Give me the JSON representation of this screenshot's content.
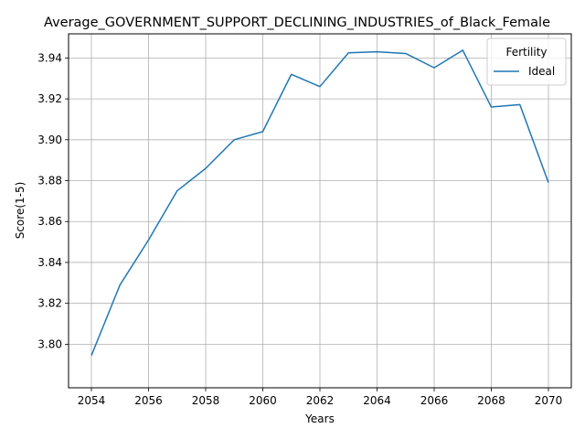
{
  "chart_data": {
    "type": "line",
    "title": "Average_GOVERNMENT_SUPPORT_DECLINING_INDUSTRIES_of_Black_Female",
    "xlabel": "Years",
    "ylabel": "Score(1-5)",
    "x": [
      2054,
      2055,
      2056,
      2057,
      2058,
      2059,
      2060,
      2061,
      2062,
      2063,
      2064,
      2065,
      2066,
      2067,
      2068,
      2069,
      2070
    ],
    "x_ticks": [
      "2054",
      "2056",
      "2058",
      "2060",
      "2062",
      "2064",
      "2066",
      "2068",
      "2070"
    ],
    "y_ticks": [
      "3.80",
      "3.82",
      "3.84",
      "3.86",
      "3.88",
      "3.90",
      "3.92",
      "3.94"
    ],
    "xlim": [
      2053.2,
      2070.8
    ],
    "ylim": [
      3.7787,
      3.9518
    ],
    "grid": true,
    "legend": {
      "title": "Fertility",
      "placement": "top-right"
    },
    "series": [
      {
        "name": "Ideal",
        "color": "#1f77b4",
        "values": [
          3.7945,
          3.829,
          3.851,
          3.875,
          3.886,
          3.9,
          3.904,
          3.932,
          3.926,
          3.9425,
          3.943,
          3.9422,
          3.9352,
          3.9438,
          3.916,
          3.9172,
          3.879
        ]
      }
    ]
  }
}
